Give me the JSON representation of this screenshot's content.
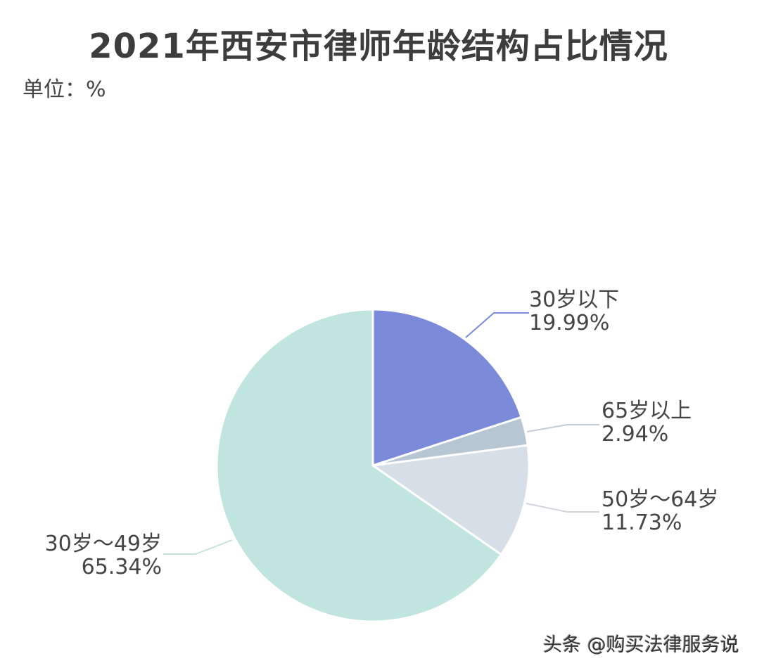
{
  "title": "2021年西安市律师年龄结构占比情况",
  "unit": "单位：%",
  "watermark": "头条 @购买法律服务说",
  "chart_data": {
    "type": "pie",
    "title": "2021年西安市律师年龄结构占比情况",
    "subtitle": "单位：%",
    "start_angle_deg": 0,
    "direction": "clockwise",
    "slices": [
      {
        "label": "30岁以下",
        "value": 19.99,
        "value_label": "19.99%",
        "color": "#7b8bd9"
      },
      {
        "label": "65岁以上",
        "value": 2.94,
        "value_label": "2.94%",
        "color": "#b6c6d3"
      },
      {
        "label": "50岁～64岁",
        "value": 11.73,
        "value_label": "11.73%",
        "color": "#d6dee7"
      },
      {
        "label": "30岁～49岁",
        "value": 65.34,
        "value_label": "65.34%",
        "color": "#c0e4de"
      }
    ],
    "legend": "none (data labels with leader lines)"
  },
  "labels": [
    {
      "name": "30岁以下",
      "value": "19.99%"
    },
    {
      "name": "65岁以上",
      "value": "2.94%"
    },
    {
      "name": "50岁～64岁",
      "value": "11.73%"
    },
    {
      "name": "30岁～49岁",
      "value": "65.34%"
    }
  ]
}
